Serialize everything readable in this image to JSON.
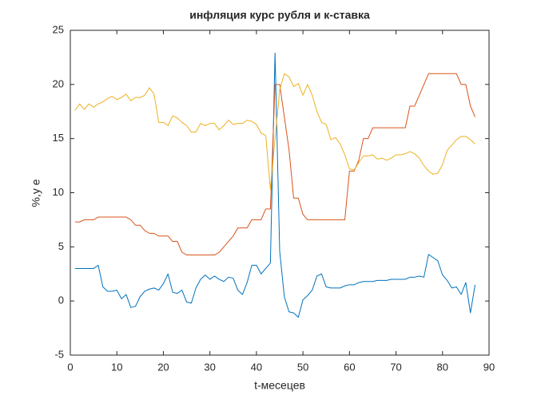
{
  "chart_data": {
    "type": "line",
    "title": "инфляция курс рубля и к-ставка",
    "xlabel": "t-месецев",
    "ylabel": "%,у е",
    "x": [
      1,
      2,
      3,
      4,
      5,
      6,
      7,
      8,
      9,
      10,
      11,
      12,
      13,
      14,
      15,
      16,
      17,
      18,
      19,
      20,
      21,
      22,
      23,
      24,
      25,
      26,
      27,
      28,
      29,
      30,
      31,
      32,
      33,
      34,
      35,
      36,
      37,
      38,
      39,
      40,
      41,
      42,
      43,
      44,
      45,
      46,
      47,
      48,
      49,
      50,
      51,
      52,
      53,
      54,
      55,
      56,
      57,
      58,
      59,
      60,
      61,
      62,
      63,
      64,
      65,
      66,
      67,
      68,
      69,
      70,
      71,
      72,
      73,
      74,
      75,
      76,
      77,
      78,
      79,
      80,
      81,
      82,
      83,
      84,
      85,
      86,
      87
    ],
    "series": [
      {
        "color": "#0072BD",
        "values": [
          3.0,
          3.0,
          3.0,
          3.0,
          3.0,
          3.3,
          1.3,
          0.9,
          0.9,
          1.0,
          0.2,
          0.6,
          -0.6,
          -0.5,
          0.4,
          0.9,
          1.1,
          1.2,
          1.0,
          1.6,
          2.5,
          0.8,
          0.7,
          1.0,
          -0.1,
          -0.2,
          1.2,
          2.0,
          2.4,
          2.0,
          2.3,
          2.0,
          1.8,
          2.2,
          2.1,
          1.0,
          0.6,
          1.7,
          3.3,
          3.3,
          2.5,
          3.0,
          3.5,
          22.9,
          4.6,
          0.4,
          -1.0,
          -1.1,
          -1.5,
          0.1,
          0.5,
          1.0,
          2.3,
          2.5,
          1.3,
          1.2,
          1.2,
          1.2,
          1.4,
          1.5,
          1.5,
          1.7,
          1.8,
          1.8,
          1.8,
          1.9,
          1.9,
          1.9,
          2.0,
          2.0,
          2.0,
          2.0,
          2.2,
          2.2,
          2.3,
          2.2,
          4.3,
          4.0,
          3.7,
          2.4,
          1.9,
          1.2,
          1.3,
          0.6,
          1.7,
          -1.1,
          1.5
        ]
      },
      {
        "color": "#D95319",
        "values": [
          7.3,
          7.3,
          7.5,
          7.5,
          7.5,
          7.75,
          7.75,
          7.75,
          7.75,
          7.75,
          7.75,
          7.75,
          7.5,
          7.0,
          7.0,
          6.5,
          6.25,
          6.25,
          6.0,
          6.0,
          6.0,
          5.5,
          5.5,
          4.5,
          4.25,
          4.25,
          4.25,
          4.25,
          4.25,
          4.25,
          4.25,
          4.5,
          5.0,
          5.5,
          6.0,
          6.75,
          6.75,
          6.75,
          7.5,
          7.5,
          7.5,
          8.5,
          8.5,
          20,
          20,
          17,
          14,
          9.5,
          9.5,
          8.0,
          7.5,
          7.5,
          7.5,
          7.5,
          7.5,
          7.5,
          7.5,
          7.5,
          7.5,
          12,
          12,
          13,
          15,
          15,
          16,
          16,
          16,
          16,
          16,
          16,
          16,
          16,
          18,
          18,
          19,
          20,
          21,
          21,
          21,
          21,
          21,
          21,
          21,
          20,
          20,
          18,
          17
        ]
      },
      {
        "color": "#EDB120",
        "values": [
          17.6,
          18.2,
          17.7,
          18.2,
          17.9,
          18.2,
          18.4,
          18.7,
          18.9,
          18.6,
          18.8,
          19.1,
          18.5,
          18.8,
          18.8,
          19.0,
          19.7,
          19.1,
          16.5,
          16.5,
          16.2,
          17.1,
          16.9,
          16.5,
          16.2,
          15.6,
          15.6,
          16.4,
          16.2,
          16.4,
          16.4,
          15.8,
          16.2,
          16.7,
          16.3,
          16.4,
          16.4,
          16.7,
          16.6,
          16.3,
          15.5,
          15.3,
          10.3,
          15.0,
          19.5,
          21.0,
          20.7,
          19.8,
          20.1,
          19.0,
          20.0,
          19.0,
          17.5,
          16.5,
          16.3,
          14.9,
          15.1,
          14.5,
          13.5,
          12.2,
          12.1,
          12.8,
          13.4,
          13.4,
          13.5,
          13.1,
          13.2,
          13.0,
          13.2,
          13.5,
          13.5,
          13.6,
          13.8,
          13.6,
          13.2,
          12.5,
          12.0,
          11.7,
          11.8,
          12.6,
          13.9,
          14.4,
          14.9,
          15.2,
          15.2,
          14.9,
          14.5
        ]
      }
    ],
    "xlim": [
      0,
      90
    ],
    "xticks": [
      0,
      10,
      20,
      30,
      40,
      50,
      60,
      70,
      80,
      90
    ],
    "ylim": [
      -5,
      25
    ],
    "yticks": [
      -5,
      0,
      5,
      10,
      15,
      20,
      25
    ],
    "grid": false
  }
}
